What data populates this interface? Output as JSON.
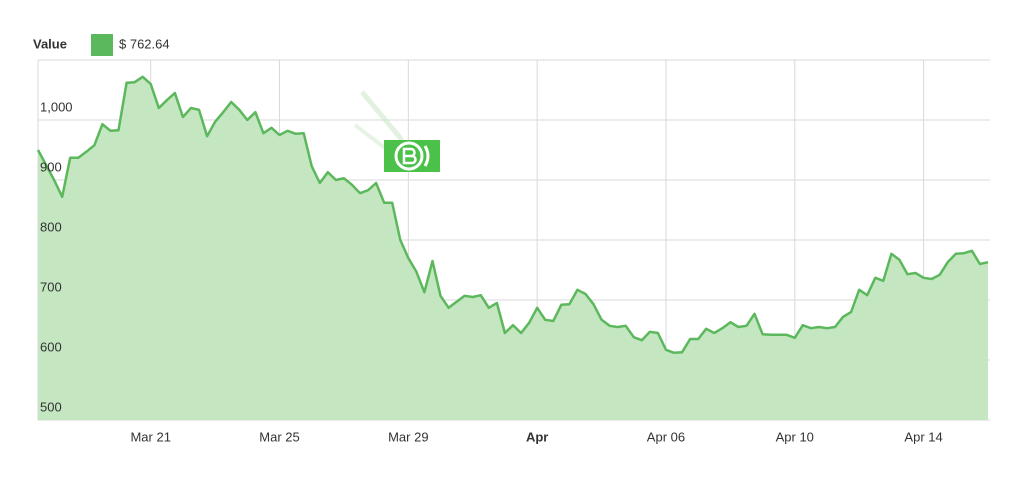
{
  "chart_data": {
    "type": "area",
    "legend_title": "Value",
    "current_value": {
      "value": 762.64,
      "label": "$ 762.64"
    },
    "categories": [
      null,
      null,
      null,
      null,
      null,
      null,
      null,
      null,
      null,
      null,
      null,
      null,
      null,
      null,
      "Mar 21",
      null,
      null,
      null,
      null,
      null,
      null,
      null,
      null,
      null,
      null,
      null,
      null,
      null,
      null,
      null,
      "Mar 25",
      null,
      null,
      null,
      null,
      null,
      null,
      null,
      null,
      null,
      null,
      null,
      null,
      null,
      null,
      null,
      "Mar 29",
      null,
      null,
      null,
      null,
      null,
      null,
      null,
      null,
      null,
      null,
      null,
      null,
      null,
      null,
      null,
      "Apr",
      null,
      null,
      null,
      null,
      null,
      null,
      null,
      null,
      null,
      null,
      null,
      null,
      null,
      null,
      null,
      "Apr 06",
      null,
      null,
      null,
      null,
      null,
      null,
      null,
      null,
      null,
      null,
      null,
      null,
      null,
      null,
      null,
      "Apr 10",
      null,
      null,
      null,
      null,
      null,
      null,
      null,
      null,
      null,
      null,
      null,
      null,
      null,
      null,
      null,
      "Apr 14",
      null,
      null,
      null,
      null,
      null,
      null,
      null,
      null
    ],
    "series": [
      {
        "name": "Value",
        "color": "#5cb85c",
        "fill": "#c4e6c1",
        "values": [
          950,
          925,
          900,
          872,
          937,
          937,
          947,
          958,
          993,
          982,
          983,
          1062,
          1063,
          1072,
          1060,
          1020,
          1033,
          1045,
          1005,
          1020,
          1017,
          973,
          997,
          1013,
          1030,
          1017,
          1000,
          1013,
          978,
          987,
          975,
          982,
          977,
          978,
          923,
          895,
          913,
          900,
          903,
          892,
          878,
          883,
          895,
          862,
          862,
          800,
          770,
          747,
          713,
          765,
          707,
          687,
          697,
          707,
          705,
          708,
          687,
          695,
          645,
          658,
          645,
          662,
          687,
          667,
          665,
          692,
          693,
          717,
          710,
          693,
          667,
          657,
          655,
          657,
          638,
          633,
          647,
          645,
          617,
          612,
          613,
          635,
          635,
          652,
          645,
          653,
          663,
          655,
          657,
          677,
          643,
          642,
          642,
          642,
          637,
          658,
          653,
          655,
          653,
          655,
          672,
          680,
          717,
          708,
          737,
          732,
          777,
          767,
          743,
          745,
          737,
          735,
          742,
          763,
          777,
          778,
          782,
          760,
          763
        ]
      }
    ],
    "ylim": [
      500,
      1100
    ],
    "yticks": [
      500,
      600,
      700,
      800,
      900,
      {
        "value": 1000,
        "label": "1,000"
      }
    ],
    "grid": true
  }
}
